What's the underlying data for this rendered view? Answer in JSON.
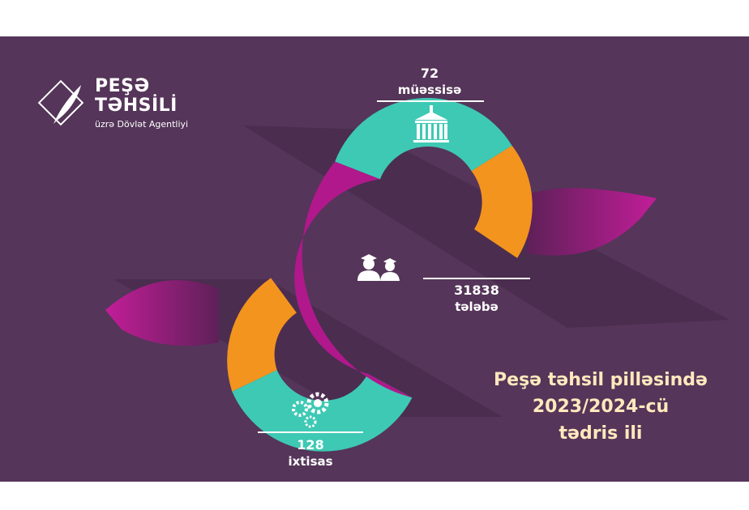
{
  "brand": {
    "title_line1": "PEŞƏ",
    "title_line2": "TƏHSİLİ",
    "subtitle": "üzrə Dövlət Agentliyi",
    "logo_icon": "book-quill-icon"
  },
  "stats": [
    {
      "value": "72",
      "label": "müəssisə",
      "icon": "institution-building-icon"
    },
    {
      "value": "31838",
      "label": "tələbə",
      "icon": "graduate-students-icon"
    },
    {
      "value": "128",
      "label": "ixtisas",
      "icon": "gears-person-icon"
    }
  ],
  "caption": {
    "line1": "Peşə təhsil pilləsində",
    "line2": "2023/2024-cü",
    "line3": "tədris ili"
  },
  "colors": {
    "background": "#553559",
    "teal": "#3ec9b4",
    "orange": "#f3941e",
    "magenta": "#b0188c",
    "caption_text": "#ffe9bd"
  }
}
